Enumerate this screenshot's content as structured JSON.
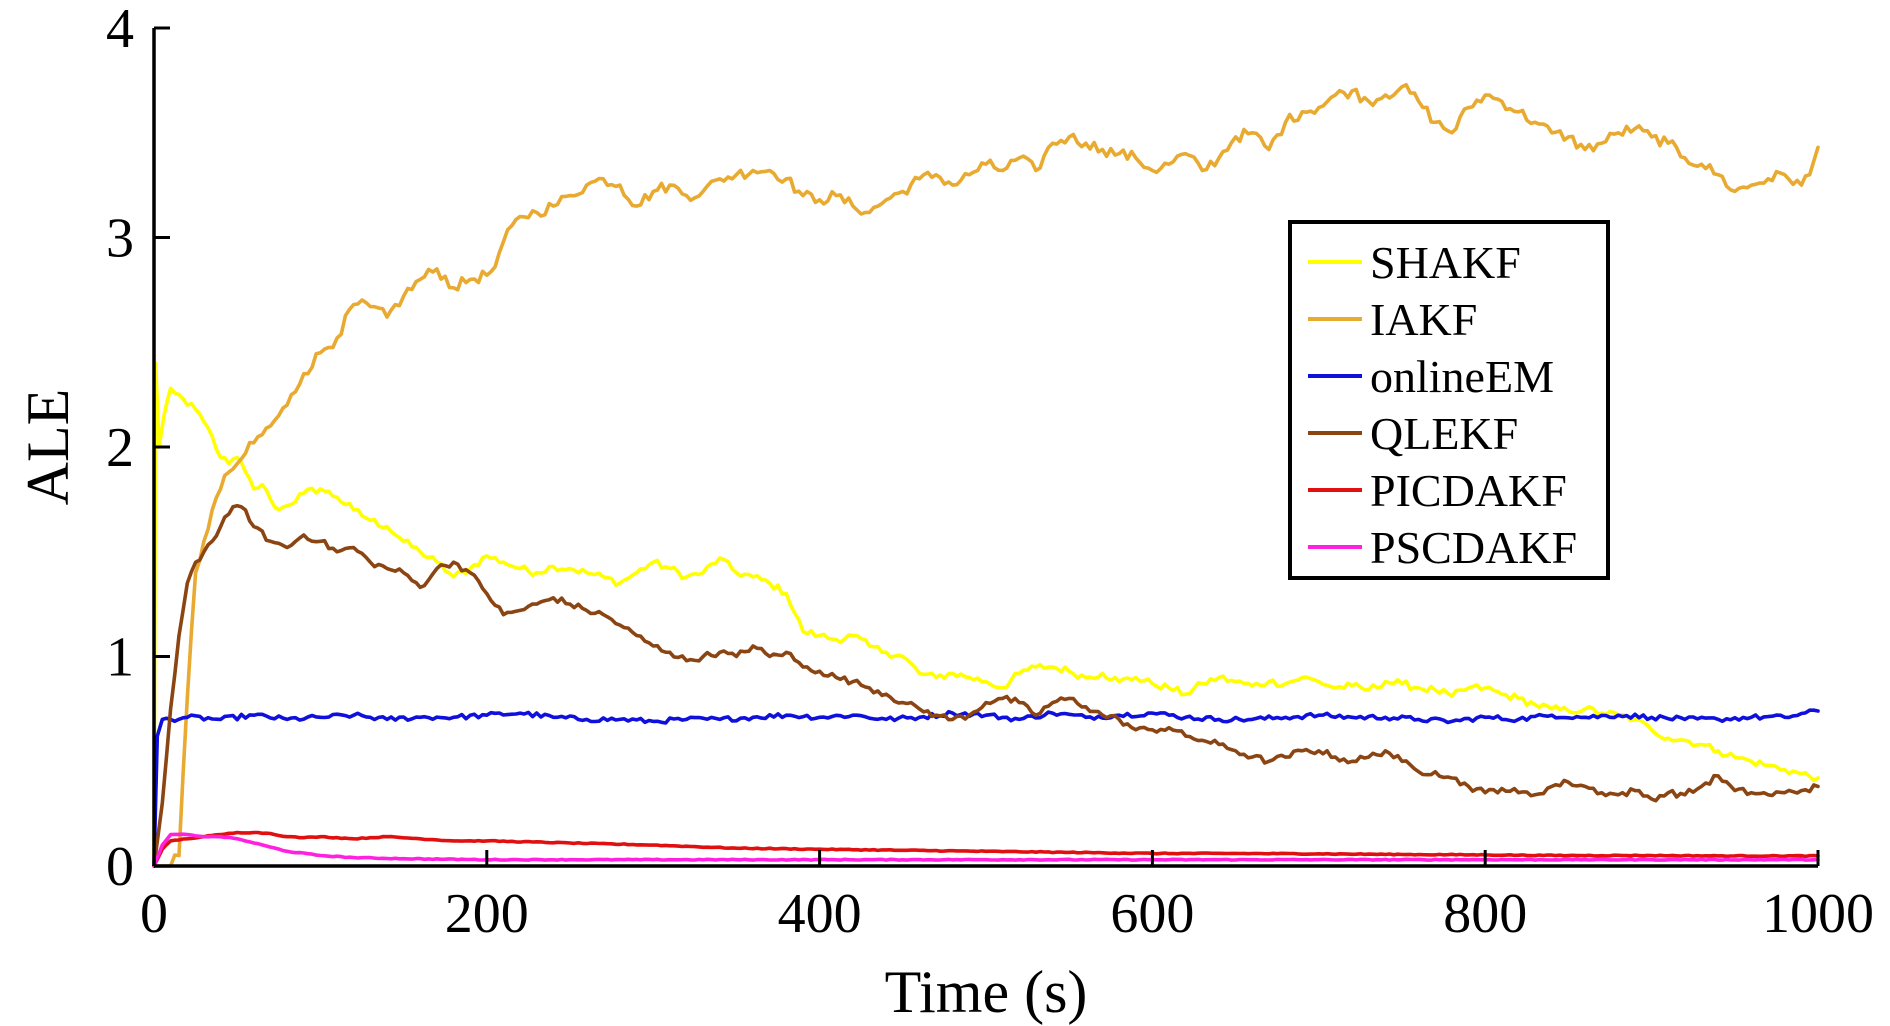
{
  "chart_data": {
    "type": "line",
    "title": "",
    "xlabel": "Time (s)",
    "ylabel": "ALE",
    "xlim": [
      0,
      1000
    ],
    "ylim": [
      0,
      4
    ],
    "xticks": [
      0,
      200,
      400,
      600,
      800,
      1000
    ],
    "yticks": [
      0,
      1,
      2,
      3,
      4
    ],
    "xtick_labels": [
      "0",
      "200",
      "400",
      "600",
      "800",
      "1000"
    ],
    "ytick_labels": [
      "0",
      "1",
      "2",
      "3",
      "4"
    ],
    "grid": false,
    "legend_position": "right",
    "series": [
      {
        "name": "SHAKF",
        "color": "#ffff00",
        "x": [
          0,
          1,
          3,
          6,
          10,
          15,
          20,
          25,
          30,
          35,
          40,
          45,
          50,
          55,
          60,
          65,
          70,
          75,
          80,
          90,
          100,
          110,
          120,
          130,
          140,
          150,
          160,
          170,
          180,
          190,
          200,
          210,
          220,
          230,
          240,
          250,
          260,
          270,
          280,
          290,
          300,
          310,
          320,
          330,
          340,
          350,
          360,
          370,
          380,
          390,
          400,
          410,
          420,
          430,
          440,
          450,
          460,
          470,
          480,
          490,
          500,
          510,
          520,
          530,
          540,
          550,
          560,
          570,
          580,
          590,
          600,
          610,
          620,
          630,
          640,
          650,
          660,
          670,
          680,
          690,
          700,
          710,
          720,
          730,
          740,
          750,
          760,
          770,
          780,
          790,
          800,
          810,
          820,
          830,
          840,
          850,
          860,
          870,
          880,
          890,
          900,
          910,
          920,
          930,
          940,
          950,
          960,
          970,
          980,
          990,
          1000
        ],
        "y": [
          0.0,
          2.4,
          2.0,
          2.15,
          2.28,
          2.25,
          2.2,
          2.18,
          2.12,
          2.05,
          1.95,
          1.92,
          1.95,
          1.88,
          1.8,
          1.82,
          1.75,
          1.7,
          1.72,
          1.78,
          1.8,
          1.76,
          1.7,
          1.65,
          1.62,
          1.55,
          1.5,
          1.45,
          1.38,
          1.42,
          1.48,
          1.45,
          1.42,
          1.4,
          1.43,
          1.42,
          1.4,
          1.38,
          1.35,
          1.4,
          1.45,
          1.42,
          1.38,
          1.4,
          1.47,
          1.4,
          1.38,
          1.35,
          1.3,
          1.12,
          1.1,
          1.08,
          1.1,
          1.05,
          1.02,
          1.0,
          0.92,
          0.9,
          0.92,
          0.9,
          0.88,
          0.85,
          0.92,
          0.95,
          0.95,
          0.93,
          0.9,
          0.92,
          0.88,
          0.9,
          0.87,
          0.85,
          0.82,
          0.87,
          0.9,
          0.88,
          0.86,
          0.88,
          0.87,
          0.9,
          0.88,
          0.85,
          0.86,
          0.84,
          0.88,
          0.87,
          0.85,
          0.84,
          0.81,
          0.85,
          0.85,
          0.82,
          0.8,
          0.77,
          0.75,
          0.74,
          0.75,
          0.73,
          0.72,
          0.7,
          0.65,
          0.61,
          0.6,
          0.58,
          0.55,
          0.52,
          0.5,
          0.48,
          0.46,
          0.44,
          0.42
        ]
      },
      {
        "name": "IAKF",
        "color": "#e8aa30",
        "x": [
          0,
          10,
          15,
          20,
          25,
          30,
          35,
          40,
          45,
          50,
          55,
          60,
          70,
          80,
          90,
          100,
          110,
          120,
          130,
          140,
          150,
          160,
          170,
          180,
          190,
          200,
          205,
          210,
          220,
          230,
          240,
          250,
          260,
          270,
          280,
          290,
          300,
          310,
          320,
          330,
          340,
          350,
          360,
          370,
          380,
          390,
          400,
          410,
          420,
          430,
          440,
          450,
          460,
          470,
          480,
          490,
          500,
          510,
          520,
          530,
          540,
          550,
          560,
          570,
          580,
          590,
          600,
          610,
          620,
          630,
          640,
          650,
          660,
          670,
          680,
          690,
          700,
          710,
          720,
          730,
          740,
          750,
          760,
          770,
          780,
          790,
          800,
          810,
          820,
          830,
          840,
          850,
          860,
          870,
          880,
          890,
          900,
          910,
          920,
          930,
          940,
          950,
          960,
          970,
          980,
          990,
          995,
          1000
        ],
        "y": [
          0.0,
          0.0,
          0.05,
          0.8,
          1.4,
          1.55,
          1.7,
          1.8,
          1.88,
          1.92,
          1.97,
          2.02,
          2.1,
          2.2,
          2.35,
          2.45,
          2.52,
          2.68,
          2.67,
          2.62,
          2.72,
          2.8,
          2.85,
          2.76,
          2.8,
          2.82,
          2.86,
          2.98,
          3.1,
          3.12,
          3.15,
          3.2,
          3.25,
          3.28,
          3.25,
          3.15,
          3.22,
          3.25,
          3.2,
          3.22,
          3.28,
          3.3,
          3.32,
          3.32,
          3.28,
          3.2,
          3.18,
          3.2,
          3.15,
          3.12,
          3.18,
          3.22,
          3.28,
          3.3,
          3.25,
          3.3,
          3.35,
          3.32,
          3.38,
          3.32,
          3.45,
          3.48,
          3.45,
          3.42,
          3.4,
          3.38,
          3.32,
          3.35,
          3.4,
          3.32,
          3.38,
          3.48,
          3.5,
          3.42,
          3.55,
          3.6,
          3.62,
          3.68,
          3.7,
          3.65,
          3.68,
          3.72,
          3.65,
          3.55,
          3.5,
          3.62,
          3.68,
          3.65,
          3.6,
          3.55,
          3.5,
          3.48,
          3.42,
          3.45,
          3.5,
          3.52,
          3.48,
          3.45,
          3.38,
          3.35,
          3.3,
          3.22,
          3.25,
          3.28,
          3.3,
          3.25,
          3.3,
          3.43
        ]
      },
      {
        "name": "onlineEM",
        "color": "#1010dd",
        "x": [
          0,
          2,
          5,
          10,
          20,
          40,
          60,
          80,
          100,
          120,
          140,
          160,
          180,
          200,
          220,
          240,
          260,
          280,
          300,
          320,
          340,
          360,
          380,
          400,
          420,
          440,
          460,
          480,
          500,
          520,
          540,
          560,
          580,
          600,
          620,
          640,
          660,
          680,
          700,
          720,
          740,
          760,
          780,
          800,
          820,
          840,
          860,
          880,
          900,
          920,
          940,
          960,
          980,
          1000
        ],
        "y": [
          0.0,
          0.62,
          0.7,
          0.7,
          0.71,
          0.7,
          0.72,
          0.7,
          0.71,
          0.72,
          0.7,
          0.71,
          0.71,
          0.72,
          0.73,
          0.71,
          0.7,
          0.7,
          0.69,
          0.7,
          0.7,
          0.71,
          0.72,
          0.71,
          0.72,
          0.7,
          0.71,
          0.73,
          0.72,
          0.7,
          0.73,
          0.71,
          0.72,
          0.73,
          0.71,
          0.7,
          0.7,
          0.71,
          0.72,
          0.71,
          0.71,
          0.7,
          0.69,
          0.71,
          0.7,
          0.72,
          0.71,
          0.72,
          0.71,
          0.7,
          0.7,
          0.71,
          0.71,
          0.74
        ]
      },
      {
        "name": "QLEKF",
        "color": "#8b4513",
        "x": [
          0,
          5,
          10,
          15,
          20,
          25,
          30,
          35,
          40,
          45,
          50,
          55,
          60,
          70,
          80,
          90,
          100,
          110,
          120,
          130,
          140,
          150,
          160,
          170,
          180,
          190,
          200,
          210,
          220,
          230,
          240,
          250,
          260,
          270,
          280,
          290,
          300,
          310,
          320,
          330,
          340,
          350,
          360,
          370,
          380,
          390,
          400,
          410,
          420,
          430,
          440,
          450,
          460,
          470,
          480,
          490,
          500,
          510,
          520,
          530,
          540,
          550,
          560,
          570,
          580,
          590,
          600,
          610,
          620,
          630,
          640,
          650,
          660,
          670,
          680,
          690,
          700,
          710,
          720,
          730,
          740,
          750,
          760,
          770,
          780,
          790,
          800,
          810,
          820,
          830,
          840,
          850,
          860,
          870,
          880,
          890,
          900,
          910,
          920,
          930,
          940,
          950,
          960,
          970,
          980,
          990,
          1000
        ],
        "y": [
          0.0,
          0.3,
          0.75,
          1.1,
          1.35,
          1.45,
          1.5,
          1.55,
          1.62,
          1.68,
          1.72,
          1.7,
          1.62,
          1.55,
          1.52,
          1.58,
          1.55,
          1.5,
          1.52,
          1.45,
          1.42,
          1.4,
          1.33,
          1.42,
          1.45,
          1.4,
          1.3,
          1.2,
          1.22,
          1.25,
          1.28,
          1.25,
          1.22,
          1.2,
          1.15,
          1.1,
          1.05,
          1.02,
          0.98,
          1.0,
          1.02,
          1.0,
          1.05,
          1.0,
          1.02,
          0.95,
          0.93,
          0.9,
          0.88,
          0.85,
          0.82,
          0.78,
          0.75,
          0.72,
          0.7,
          0.72,
          0.78,
          0.8,
          0.78,
          0.72,
          0.78,
          0.8,
          0.76,
          0.72,
          0.7,
          0.65,
          0.65,
          0.66,
          0.62,
          0.6,
          0.58,
          0.55,
          0.52,
          0.5,
          0.52,
          0.55,
          0.55,
          0.52,
          0.5,
          0.52,
          0.55,
          0.5,
          0.45,
          0.45,
          0.42,
          0.38,
          0.35,
          0.37,
          0.35,
          0.34,
          0.38,
          0.4,
          0.38,
          0.35,
          0.34,
          0.36,
          0.32,
          0.35,
          0.34,
          0.38,
          0.43,
          0.36,
          0.35,
          0.34,
          0.35,
          0.36,
          0.38
        ]
      },
      {
        "name": "PICDAKF",
        "color": "#e01010",
        "x": [
          0,
          5,
          10,
          20,
          30,
          40,
          50,
          60,
          70,
          80,
          90,
          100,
          120,
          140,
          160,
          180,
          200,
          250,
          300,
          350,
          400,
          450,
          500,
          550,
          600,
          650,
          700,
          750,
          800,
          850,
          900,
          950,
          1000
        ],
        "y": [
          0.0,
          0.08,
          0.12,
          0.13,
          0.14,
          0.15,
          0.16,
          0.16,
          0.155,
          0.14,
          0.135,
          0.14,
          0.13,
          0.14,
          0.13,
          0.12,
          0.12,
          0.11,
          0.1,
          0.085,
          0.08,
          0.075,
          0.07,
          0.065,
          0.06,
          0.06,
          0.058,
          0.055,
          0.053,
          0.05,
          0.05,
          0.048,
          0.048
        ]
      },
      {
        "name": "PSCDAKF",
        "color": "#ff20e0",
        "x": [
          0,
          5,
          10,
          20,
          30,
          40,
          50,
          60,
          70,
          80,
          100,
          120,
          150,
          200,
          250,
          300,
          400,
          500,
          600,
          700,
          800,
          900,
          1000
        ],
        "y": [
          0.0,
          0.1,
          0.15,
          0.15,
          0.14,
          0.14,
          0.13,
          0.11,
          0.09,
          0.07,
          0.05,
          0.04,
          0.035,
          0.03,
          0.03,
          0.03,
          0.03,
          0.03,
          0.03,
          0.03,
          0.03,
          0.03,
          0.03
        ]
      }
    ]
  }
}
